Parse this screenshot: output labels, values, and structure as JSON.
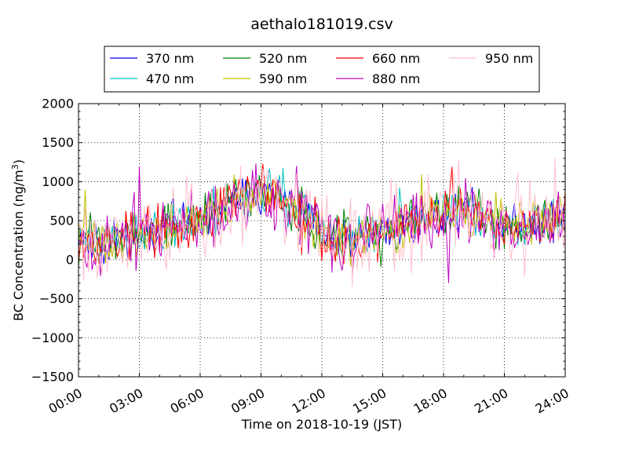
{
  "chart_data": {
    "type": "line",
    "title": "aethalo181019.csv",
    "xlabel": "Time on 2018-10-19 (JST)",
    "ylabel": "BC Concentration (ng/m³)",
    "ylabel_main": "BC Concentration (ng/m",
    "ylabel_sup": "3",
    "ylabel_tail": ")",
    "xlim": [
      0,
      24
    ],
    "ylim": [
      -1500,
      2000
    ],
    "x_unit": "hours since 00:00",
    "grid": true,
    "legend_position": "top-center",
    "x_ticks": [
      {
        "value": 0,
        "label": "00:00"
      },
      {
        "value": 3,
        "label": "03:00"
      },
      {
        "value": 6,
        "label": "06:00"
      },
      {
        "value": 9,
        "label": "09:00"
      },
      {
        "value": 12,
        "label": "12:00"
      },
      {
        "value": 15,
        "label": "15:00"
      },
      {
        "value": 18,
        "label": "18:00"
      },
      {
        "value": 21,
        "label": "21:00"
      },
      {
        "value": 24,
        "label": "24:00"
      }
    ],
    "y_ticks": [
      {
        "value": -1500,
        "label": "−1500"
      },
      {
        "value": -1000,
        "label": "−1000"
      },
      {
        "value": -500,
        "label": "−500"
      },
      {
        "value": 0,
        "label": "0"
      },
      {
        "value": 500,
        "label": "500"
      },
      {
        "value": 1000,
        "label": "1000"
      },
      {
        "value": 1500,
        "label": "1500"
      },
      {
        "value": 2000,
        "label": "2000"
      }
    ],
    "x": [
      0,
      0.5,
      1,
      1.5,
      2,
      2.5,
      3,
      3.5,
      4,
      4.5,
      5,
      5.5,
      6,
      6.5,
      7,
      7.5,
      8,
      8.5,
      9,
      9.5,
      10,
      10.5,
      11,
      11.5,
      12,
      12.5,
      13,
      13.5,
      14,
      14.5,
      15,
      15.5,
      16,
      16.5,
      17,
      17.5,
      18,
      18.5,
      19,
      19.5,
      20,
      20.5,
      21,
      21.5,
      22,
      22.5,
      23,
      23.5,
      24
    ],
    "series": [
      {
        "name": "370 nm",
        "color": "#0000ff",
        "amp": 160,
        "seed": 11,
        "values": [
          320,
          260,
          250,
          230,
          270,
          300,
          330,
          360,
          400,
          420,
          450,
          480,
          520,
          600,
          650,
          720,
          780,
          820,
          850,
          830,
          800,
          720,
          600,
          480,
          300,
          250,
          220,
          260,
          280,
          300,
          330,
          380,
          420,
          470,
          500,
          540,
          580,
          620,
          650,
          600,
          550,
          500,
          460,
          420,
          440,
          460,
          480,
          500,
          520
        ]
      },
      {
        "name": "470 nm",
        "color": "#00bfbf",
        "amp": 170,
        "seed": 23,
        "values": [
          330,
          270,
          255,
          235,
          265,
          305,
          335,
          355,
          405,
          430,
          455,
          485,
          525,
          605,
          655,
          725,
          785,
          825,
          855,
          835,
          805,
          725,
          605,
          485,
          305,
          255,
          225,
          265,
          285,
          305,
          335,
          385,
          425,
          475,
          505,
          545,
          585,
          625,
          655,
          605,
          555,
          505,
          465,
          425,
          445,
          465,
          485,
          505,
          525
        ]
      },
      {
        "name": "520 nm",
        "color": "#008000",
        "amp": 180,
        "seed": 37,
        "values": [
          315,
          255,
          245,
          225,
          260,
          295,
          325,
          355,
          395,
          415,
          445,
          475,
          515,
          595,
          645,
          715,
          775,
          815,
          845,
          825,
          795,
          715,
          595,
          475,
          295,
          245,
          215,
          255,
          275,
          295,
          325,
          375,
          415,
          465,
          495,
          535,
          575,
          615,
          645,
          595,
          545,
          495,
          455,
          415,
          435,
          455,
          475,
          495,
          515
        ]
      },
      {
        "name": "590 nm",
        "color": "#bfbf00",
        "amp": 185,
        "seed": 41,
        "values": [
          325,
          265,
          252,
          232,
          268,
          302,
          332,
          358,
          402,
          425,
          452,
          482,
          522,
          602,
          652,
          722,
          782,
          822,
          852,
          832,
          802,
          722,
          602,
          482,
          302,
          252,
          222,
          262,
          282,
          302,
          332,
          382,
          422,
          472,
          502,
          542,
          582,
          622,
          652,
          602,
          552,
          502,
          462,
          422,
          442,
          462,
          482,
          502,
          522
        ]
      },
      {
        "name": "660 nm",
        "color": "#ff0000",
        "amp": 200,
        "seed": 53,
        "values": [
          318,
          258,
          248,
          228,
          266,
          298,
          328,
          356,
          398,
          418,
          448,
          478,
          518,
          598,
          648,
          718,
          778,
          818,
          848,
          828,
          798,
          718,
          598,
          478,
          298,
          248,
          218,
          258,
          278,
          298,
          328,
          378,
          418,
          468,
          498,
          538,
          578,
          618,
          648,
          598,
          548,
          498,
          458,
          418,
          438,
          458,
          478,
          498,
          518
        ]
      },
      {
        "name": "880 nm",
        "color": "#bf00bf",
        "amp": 260,
        "seed": 67,
        "values": [
          322,
          262,
          251,
          231,
          269,
          301,
          331,
          359,
          401,
          421,
          451,
          481,
          521,
          601,
          651,
          721,
          781,
          821,
          851,
          831,
          801,
          721,
          601,
          481,
          301,
          251,
          221,
          261,
          281,
          301,
          331,
          381,
          421,
          471,
          501,
          541,
          581,
          621,
          651,
          601,
          551,
          501,
          461,
          421,
          441,
          461,
          481,
          501,
          521
        ]
      },
      {
        "name": "950 nm",
        "color": "#ffc0cb",
        "amp": 340,
        "seed": 79,
        "values": [
          328,
          268,
          254,
          234,
          264,
          304,
          334,
          354,
          404,
          428,
          454,
          484,
          524,
          604,
          654,
          724,
          784,
          824,
          854,
          834,
          804,
          724,
          604,
          484,
          304,
          254,
          224,
          264,
          284,
          304,
          334,
          384,
          424,
          474,
          504,
          544,
          584,
          624,
          654,
          604,
          554,
          504,
          464,
          424,
          444,
          464,
          484,
          504,
          524
        ]
      }
    ]
  }
}
